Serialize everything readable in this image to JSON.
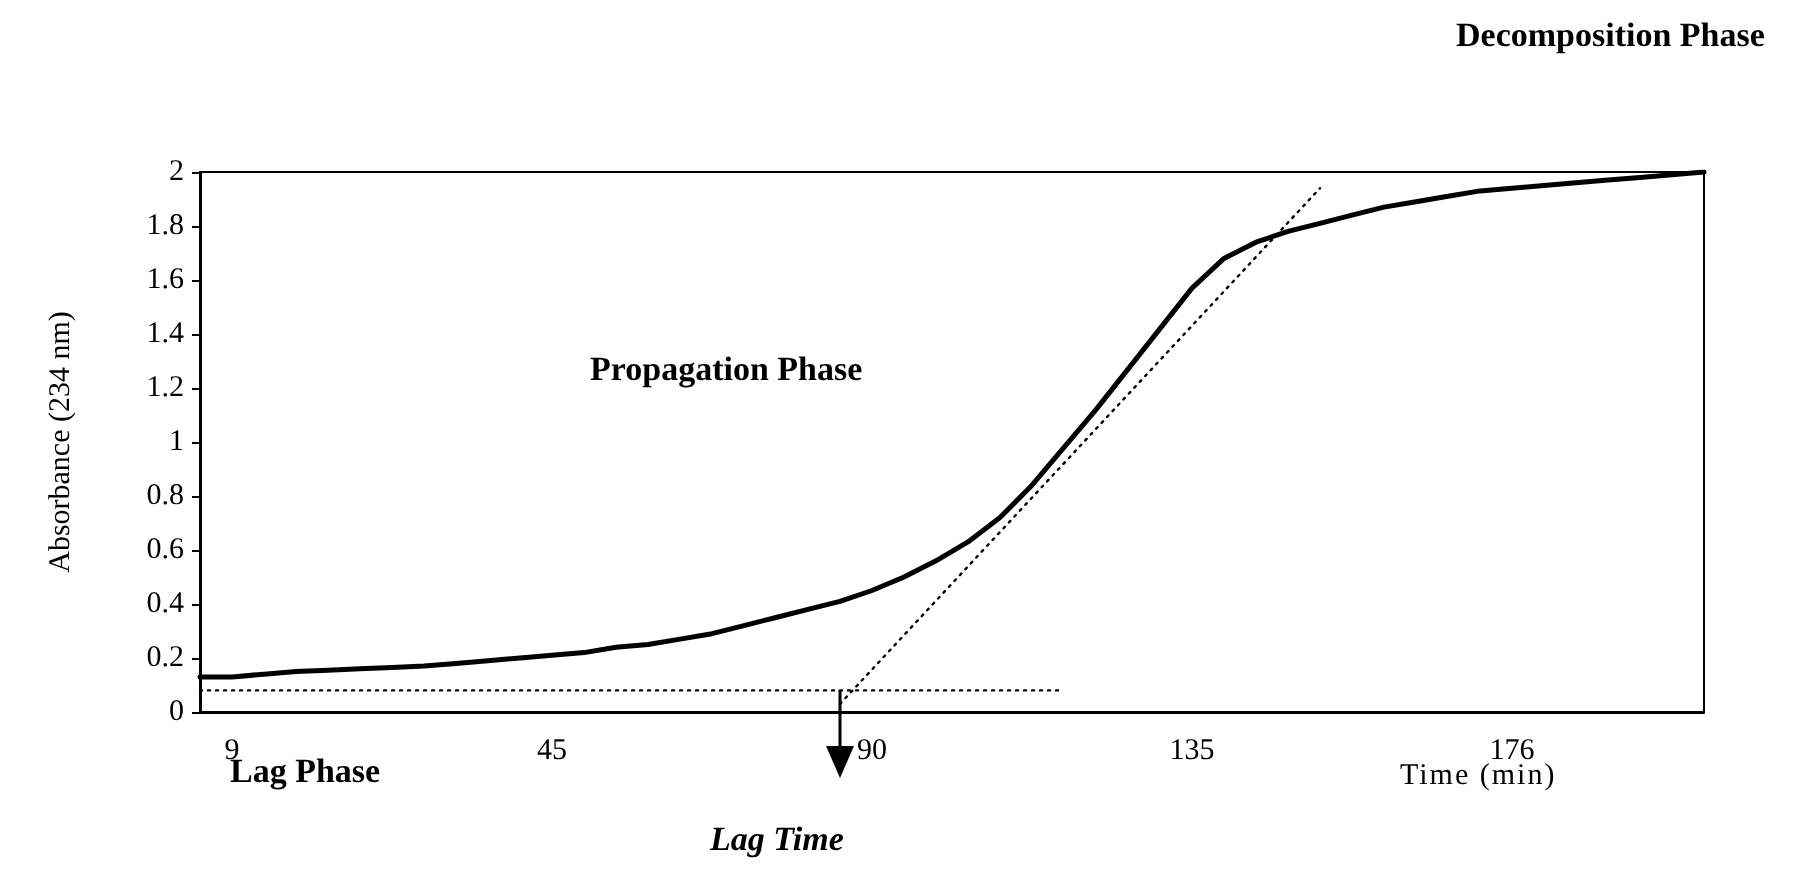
{
  "chart_data": {
    "type": "line",
    "xlabel": "Time (min)",
    "ylabel": "Absorbance (234 nm)",
    "categories": [
      null,
      "9",
      null,
      null,
      null,
      null,
      null,
      null,
      null,
      null,
      null,
      "45",
      null,
      null,
      null,
      null,
      null,
      null,
      null,
      null,
      null,
      "90",
      null,
      null,
      null,
      null,
      null,
      null,
      null,
      null,
      null,
      "135",
      null,
      null,
      null,
      null,
      null,
      null,
      null,
      null,
      null,
      "176",
      null,
      null,
      null,
      null,
      null,
      null
    ],
    "series": [
      {
        "color": "#000000",
        "line_style": "solid",
        "values": [
          0.13,
          0.13,
          0.14,
          0.15,
          0.155,
          0.16,
          0.165,
          0.17,
          0.18,
          0.19,
          0.2,
          0.21,
          0.22,
          0.24,
          0.25,
          0.27,
          0.29,
          0.32,
          0.35,
          0.38,
          0.41,
          0.45,
          0.5,
          0.56,
          0.63,
          0.72,
          0.84,
          0.98,
          1.12,
          1.27,
          1.42,
          1.57,
          1.68,
          1.74,
          1.78,
          1.81,
          1.84,
          1.87,
          1.89,
          1.91,
          1.93,
          1.94,
          1.95,
          1.96,
          1.97,
          1.98,
          1.99,
          2.0
        ]
      },
      {
        "color": "#000000",
        "line_style": "dotted",
        "values": [
          null,
          null,
          null,
          null,
          null,
          null,
          null,
          null,
          null,
          null,
          null,
          null,
          null,
          null,
          null,
          null,
          null,
          null,
          null,
          null,
          0.03,
          null,
          null,
          null,
          null,
          null,
          null,
          null,
          null,
          null,
          null,
          null,
          null,
          null,
          null,
          1.94,
          null,
          null,
          null,
          null,
          null,
          null,
          null,
          null,
          null,
          null,
          null,
          null
        ]
      },
      {
        "color": "#000000",
        "line_style": "dotted",
        "values": [
          0.08,
          null,
          null,
          null,
          null,
          null,
          null,
          null,
          null,
          null,
          null,
          null,
          null,
          null,
          null,
          null,
          null,
          null,
          null,
          null,
          null,
          null,
          null,
          null,
          null,
          null,
          null,
          0.08,
          null,
          null,
          null,
          null,
          null,
          null,
          null,
          null,
          null,
          null,
          null,
          null,
          null,
          null,
          null,
          null,
          null,
          null,
          null,
          null
        ]
      }
    ],
    "ylim": [
      0,
      2
    ],
    "yticks": [
      0,
      0.2,
      0.4,
      0.6,
      0.8,
      1,
      1.2,
      1.4,
      1.6,
      1.8,
      2
    ],
    "grid": false,
    "marker": "none",
    "annotations": [
      "Decomposition Phase",
      "Propagation Phase",
      "Lag Phase",
      "Lag Time"
    ]
  }
}
